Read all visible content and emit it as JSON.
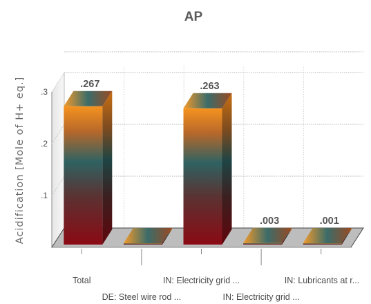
{
  "chart_data": {
    "type": "bar",
    "title": "AP",
    "ylabel": "Acidification [Mole of H+ eq.]",
    "xlabel": "",
    "ylim": [
      0,
      0.3
    ],
    "yticks": [
      {
        "value": 0.1,
        "label": ".1"
      },
      {
        "value": 0.2,
        "label": ".2"
      },
      {
        "value": 0.3,
        "label": ".3"
      }
    ],
    "categories": [
      "Total",
      "DE: Steel wire rod ...",
      "IN: Electricity grid ...",
      "IN: Electricity grid ...",
      "IN: Lubricants at r..."
    ],
    "values": [
      0.267,
      0,
      0.263,
      0.003,
      0.001
    ],
    "data_labels": [
      ".267",
      "",
      ".263",
      ".003",
      ".001"
    ],
    "style": "3d-gradient",
    "grid": "horizontal dotted",
    "colors": {
      "bar_top": "#f28c28",
      "bar_mid": "#2f5f5f",
      "bar_bottom": "#8b0a14",
      "floor": "#bdbdbd",
      "grid": "#c8c8c8"
    }
  }
}
